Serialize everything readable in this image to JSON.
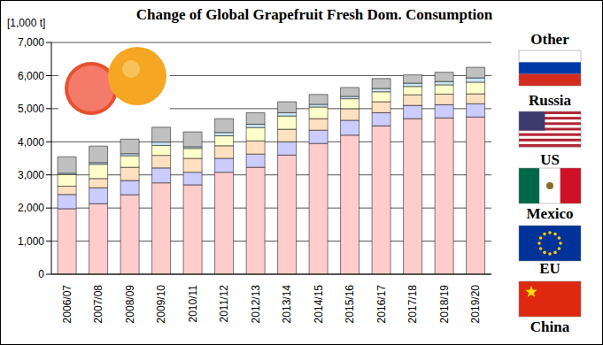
{
  "chart_data": {
    "type": "bar",
    "title": "Change of Global Grapefruit Fresh Dom. Consumption",
    "y_label": "[1,000 t]",
    "categories": [
      "2006/07",
      "2007/08",
      "2008/09",
      "2009/10",
      "2010/11",
      "2011/12",
      "2012/13",
      "2013/14",
      "2014/15",
      "2015/16",
      "2016/17",
      "2017/18",
      "2018/19",
      "2019/20"
    ],
    "series": [
      {
        "name": "China",
        "color": "#ffcccc",
        "values": [
          1980,
          2130,
          2400,
          2760,
          2700,
          3080,
          3230,
          3600,
          3950,
          4200,
          4480,
          4700,
          4720,
          4750
        ]
      },
      {
        "name": "EU",
        "color": "#ccccff",
        "values": [
          430,
          480,
          430,
          450,
          380,
          420,
          400,
          400,
          400,
          450,
          400,
          400,
          400,
          400
        ]
      },
      {
        "name": "Mexico",
        "color": "#ffe0c0",
        "values": [
          250,
          280,
          400,
          380,
          420,
          380,
          400,
          380,
          350,
          350,
          330,
          320,
          320,
          300
        ]
      },
      {
        "name": "US",
        "color": "#ffffcc",
        "values": [
          350,
          430,
          350,
          300,
          300,
          300,
          400,
          400,
          350,
          300,
          300,
          250,
          280,
          350
        ]
      },
      {
        "name": "Russia",
        "color": "#cce6f5",
        "values": [
          40,
          50,
          60,
          100,
          50,
          100,
          100,
          100,
          80,
          70,
          100,
          100,
          100,
          130
        ]
      },
      {
        "name": "Other",
        "color": "#c0c0c0",
        "values": [
          500,
          500,
          440,
          450,
          450,
          420,
          350,
          330,
          300,
          270,
          300,
          250,
          280,
          320
        ]
      }
    ],
    "ylim": [
      0,
      7000
    ],
    "yticks": [
      0,
      {
        "value": 1000,
        "label": "1,000"
      },
      {
        "value": 2000,
        "label": "2,000"
      },
      {
        "value": 3000,
        "label": "3,000"
      },
      {
        "value": 4000,
        "label": "4,000"
      },
      {
        "value": 5000,
        "label": "5,000"
      },
      {
        "value": 6000,
        "label": "6,000"
      },
      {
        "value": 7000,
        "label": "7,000"
      }
    ],
    "stacked": true,
    "grid": true,
    "legend": "right"
  }
}
